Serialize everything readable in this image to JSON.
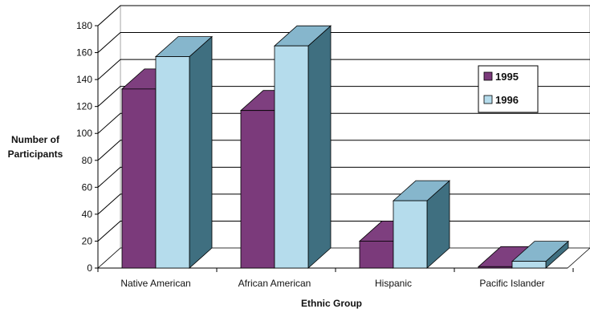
{
  "chart_data": {
    "type": "bar",
    "title": "",
    "xlabel": "Ethnic Group",
    "ylabel": "Number of Participants",
    "categories": [
      "Native American",
      "African American",
      "Hispanic",
      "Pacific Islander"
    ],
    "series": [
      {
        "name": "1995",
        "values": [
          133,
          117,
          20,
          1
        ],
        "color": "#7b3a7b"
      },
      {
        "name": "1996",
        "values": [
          157,
          165,
          50,
          5
        ],
        "color": "#b5dcec"
      }
    ],
    "yticks": [
      0,
      20,
      40,
      60,
      80,
      100,
      120,
      140,
      160,
      180
    ],
    "ylim": [
      0,
      180
    ],
    "grid": true,
    "legend": "right",
    "three_d": true
  }
}
